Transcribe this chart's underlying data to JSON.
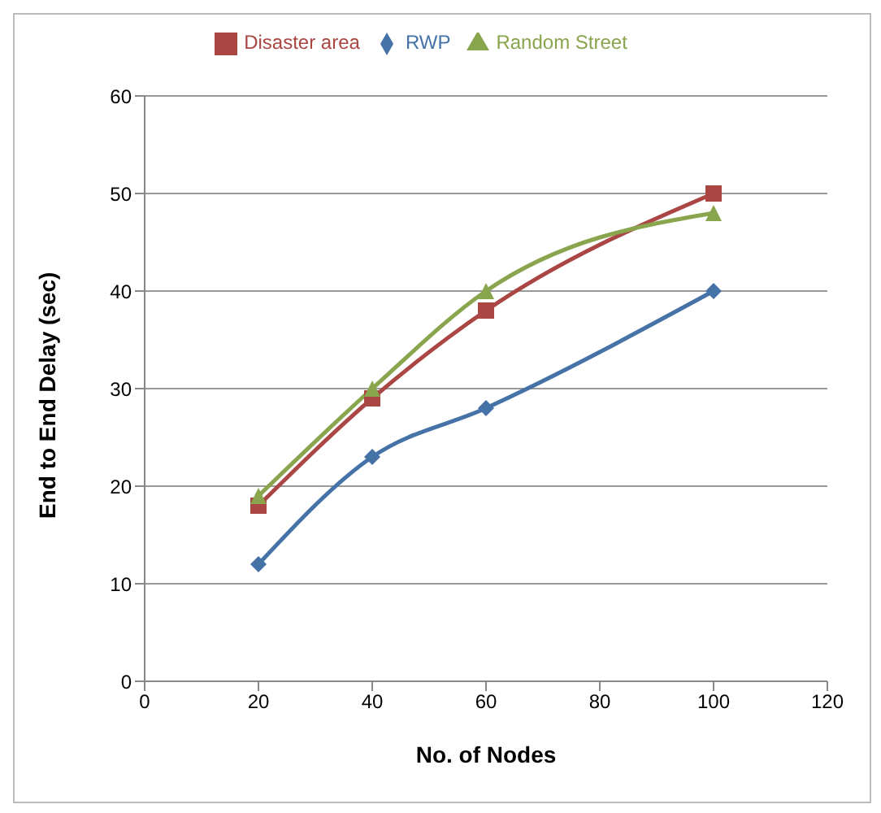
{
  "chart_data": {
    "type": "line",
    "xlabel": "No. of Nodes",
    "ylabel": "End to End Delay (sec)",
    "x": [
      20,
      40,
      60,
      100
    ],
    "xlim": [
      0,
      120
    ],
    "xticks": [
      0,
      20,
      40,
      60,
      80,
      100,
      120
    ],
    "ylim": [
      0,
      60
    ],
    "yticks": [
      0,
      10,
      20,
      30,
      40,
      50,
      60
    ],
    "grid": "y",
    "legend": "top",
    "line_style": "solid",
    "series": [
      {
        "name": "RWP",
        "color": "#4572a7",
        "marker": "diamond",
        "values": [
          12,
          23,
          28,
          40
        ]
      },
      {
        "name": "Disaster area",
        "color": "#aa4643",
        "marker": "square",
        "values": [
          18,
          29,
          38,
          50
        ]
      },
      {
        "name": "Random Street",
        "color": "#89a54e",
        "marker": "triangle",
        "values": [
          19,
          30,
          40,
          48
        ]
      }
    ]
  }
}
